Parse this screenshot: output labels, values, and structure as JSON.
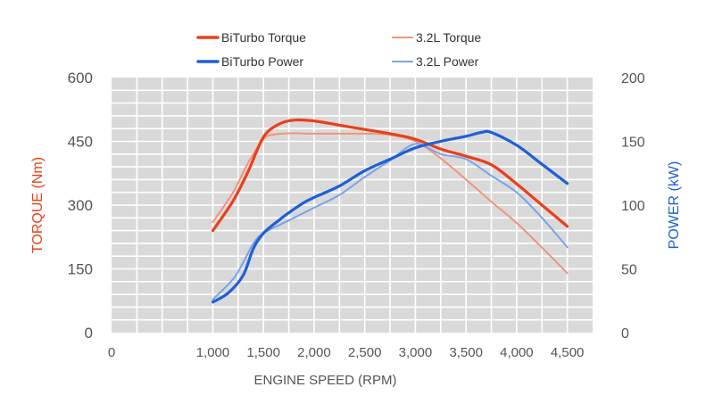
{
  "chart_data": {
    "type": "line",
    "title": "",
    "xlabel": "ENGINE SPEED (RPM)",
    "ylabel_left": "TORQUE (Nm)",
    "ylabel_right": "POWER (kW)",
    "xlim": [
      0,
      4750
    ],
    "ylim_left": [
      0,
      600
    ],
    "ylim_right": [
      0,
      200
    ],
    "x_ticks": [
      "0",
      "1,000",
      "1,500",
      "2,000",
      "2,500",
      "3,000",
      "3,500",
      "4,000",
      "4,500"
    ],
    "x_tick_values": [
      0,
      1000,
      1500,
      2000,
      2500,
      3000,
      3500,
      4000,
      4500
    ],
    "y_left_ticks": [
      "0",
      "150",
      "300",
      "450",
      "600"
    ],
    "y_left_tick_values": [
      0,
      150,
      300,
      450,
      600
    ],
    "y_right_ticks": [
      "0",
      "50",
      "100",
      "150",
      "200"
    ],
    "y_right_tick_values": [
      0,
      50,
      100,
      150,
      200
    ],
    "grid": true,
    "legend_position": "top",
    "colors": {
      "biturbo_torque": "#e8401c",
      "torque_3_2": "#f0957d",
      "biturbo_power": "#1f5fd6",
      "power_3_2": "#7aa3e8",
      "left_axis_title": "#e8401c",
      "right_axis_title": "#1f5fd6",
      "plot_bg": "#d9d9d9",
      "grid": "#ffffff"
    },
    "series": [
      {
        "name": "BiTurbo Torque",
        "axis": "left",
        "key": "biturbo_torque",
        "points": [
          [
            1000,
            240
          ],
          [
            1200,
            310
          ],
          [
            1350,
            380
          ],
          [
            1500,
            460
          ],
          [
            1650,
            490
          ],
          [
            1800,
            500
          ],
          [
            2000,
            498
          ],
          [
            2250,
            488
          ],
          [
            2500,
            478
          ],
          [
            2750,
            468
          ],
          [
            3000,
            455
          ],
          [
            3250,
            432
          ],
          [
            3500,
            415
          ],
          [
            3750,
            395
          ],
          [
            4000,
            350
          ],
          [
            4250,
            300
          ],
          [
            4500,
            250
          ]
        ]
      },
      {
        "name": "3.2L Torque",
        "axis": "left",
        "key": "torque_3_2",
        "points": [
          [
            1000,
            260
          ],
          [
            1200,
            330
          ],
          [
            1350,
            400
          ],
          [
            1500,
            455
          ],
          [
            1600,
            466
          ],
          [
            1800,
            469
          ],
          [
            2000,
            468
          ],
          [
            2500,
            468
          ],
          [
            2750,
            465
          ],
          [
            3000,
            450
          ],
          [
            3250,
            410
          ],
          [
            3500,
            360
          ],
          [
            3750,
            308
          ],
          [
            4000,
            258
          ],
          [
            4250,
            200
          ],
          [
            4500,
            140
          ]
        ]
      },
      {
        "name": "BiTurbo Power",
        "axis": "right",
        "key": "biturbo_power",
        "points": [
          [
            1000,
            24
          ],
          [
            1150,
            31
          ],
          [
            1300,
            45
          ],
          [
            1400,
            66
          ],
          [
            1500,
            78
          ],
          [
            1650,
            88
          ],
          [
            1750,
            94
          ],
          [
            1900,
            102
          ],
          [
            2000,
            106
          ],
          [
            2250,
            115
          ],
          [
            2500,
            127
          ],
          [
            2750,
            136
          ],
          [
            3000,
            145
          ],
          [
            3250,
            150
          ],
          [
            3500,
            154
          ],
          [
            3650,
            157
          ],
          [
            3750,
            157
          ],
          [
            4000,
            147
          ],
          [
            4250,
            132
          ],
          [
            4500,
            117
          ]
        ]
      },
      {
        "name": "3.2L Power",
        "axis": "right",
        "key": "power_3_2",
        "points": [
          [
            1000,
            26
          ],
          [
            1200,
            42
          ],
          [
            1300,
            55
          ],
          [
            1400,
            70
          ],
          [
            1500,
            78
          ],
          [
            1750,
            88
          ],
          [
            2000,
            98
          ],
          [
            2250,
            108
          ],
          [
            2500,
            122
          ],
          [
            2750,
            135
          ],
          [
            3000,
            148
          ],
          [
            3250,
            140
          ],
          [
            3500,
            136
          ],
          [
            3750,
            123
          ],
          [
            4000,
            110
          ],
          [
            4250,
            90
          ],
          [
            4500,
            67
          ]
        ]
      }
    ]
  }
}
